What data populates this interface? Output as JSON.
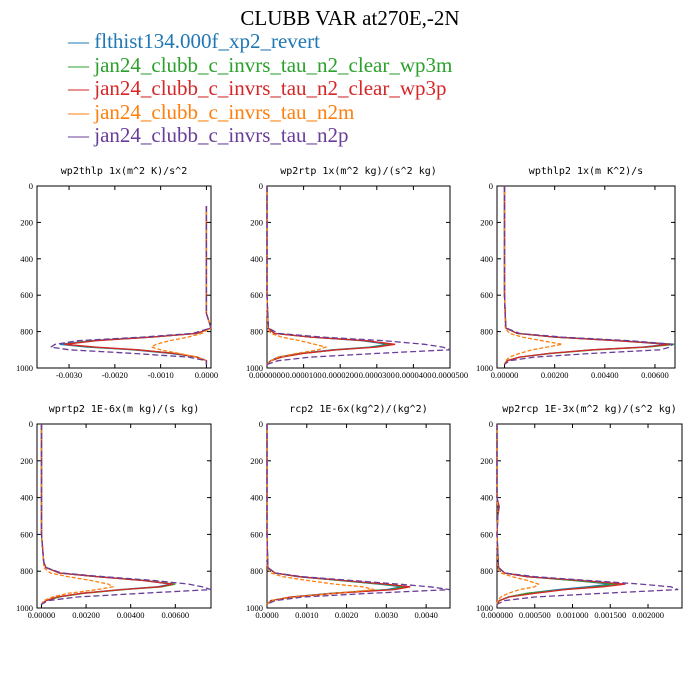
{
  "title": "CLUBB VAR at270E,-2N",
  "legend": [
    {
      "label": "flthist134.000f_xp2_revert",
      "color": "#1f77b4",
      "dash": "none"
    },
    {
      "label": "jan24_clubb_c_invrs_tau_n2_clear_wp3m",
      "color": "#2ca02c",
      "dash": "none"
    },
    {
      "label": "jan24_clubb_c_invrs_tau_n2_clear_wp3p",
      "color": "#d62728",
      "dash": "none"
    },
    {
      "label": "jan24_clubb_c_invrs_tau_n2m",
      "color": "#ff7f0e",
      "dash": "4,2"
    },
    {
      "label": "jan24_clubb_c_invrs_tau_n2p",
      "color": "#6a3d9a",
      "dash": "6,3"
    }
  ],
  "chart_data": [
    {
      "type": "line",
      "title": "wp2thlp  1x(m^2 K)/s^2",
      "xlim": [
        -0.0037,
        0.0001
      ],
      "ylim": [
        0,
        1000
      ],
      "xticks": [
        "-0.0030",
        "-0.0020",
        "-0.0010",
        "0.0000"
      ],
      "xtick_values": [
        -0.003,
        -0.002,
        -0.001,
        0.0
      ],
      "yticks": [
        "0",
        "200",
        "400",
        "600",
        "800",
        "1000"
      ],
      "ytick_values": [
        0,
        200,
        400,
        600,
        800,
        1000
      ],
      "levels": [
        110,
        150,
        200,
        300,
        400,
        500,
        600,
        700,
        780,
        810,
        830,
        850,
        870,
        885,
        900,
        920,
        940,
        960,
        980
      ],
      "series": [
        {
          "values": [
            0,
            0,
            0,
            0,
            0,
            0,
            0,
            0,
            0.0001,
            -0.0002,
            -0.0012,
            -0.0025,
            -0.0032,
            -0.0026,
            -0.0016,
            -0.0008,
            -0.0002,
            0,
            0
          ]
        },
        {
          "values": [
            0,
            0,
            0,
            0,
            0,
            0,
            0,
            0,
            0.0001,
            -0.0002,
            -0.0012,
            -0.0025,
            -0.0031,
            -0.0025,
            -0.0015,
            -0.0007,
            -0.0002,
            0,
            0
          ]
        },
        {
          "values": [
            0,
            0,
            0,
            0,
            0,
            0,
            0,
            0,
            0.0001,
            -0.0002,
            -0.0012,
            -0.0024,
            -0.0031,
            -0.0024,
            -0.0015,
            -0.0007,
            -0.0002,
            0,
            0
          ]
        },
        {
          "values": [
            0,
            0,
            0,
            0,
            0,
            0,
            0,
            0,
            0.0001,
            -0.0001,
            -0.0004,
            -0.0008,
            -0.0011,
            -0.0012,
            -0.001,
            -0.0006,
            -0.0002,
            0,
            0
          ]
        },
        {
          "values": [
            0,
            0,
            0,
            0,
            0,
            0,
            0,
            0,
            0.0001,
            -0.0003,
            -0.0014,
            -0.0028,
            -0.0033,
            -0.0034,
            -0.003,
            -0.0016,
            -0.0004,
            0,
            0
          ]
        }
      ]
    },
    {
      "type": "line",
      "title": "wp2rtp  1x(m^2 kg)/(s^2 kg)",
      "xlim": [
        0,
        5e-05
      ],
      "ylim": [
        0,
        1000
      ],
      "xticks": [
        "0.0000000",
        "0.0000100",
        "0.0000200",
        "0.0000300",
        "0.0000400",
        "0.0000500"
      ],
      "xtick_values": [
        0,
        1e-05,
        2e-05,
        3e-05,
        4e-05,
        5e-05
      ],
      "yticks": [
        "0",
        "200",
        "400",
        "600",
        "800",
        "1000"
      ],
      "ytick_values": [
        0,
        200,
        400,
        600,
        800,
        1000
      ],
      "levels": [
        0,
        200,
        400,
        600,
        780,
        810,
        830,
        850,
        870,
        885,
        900,
        920,
        940,
        960,
        980
      ],
      "series": [
        {
          "values": [
            0,
            0,
            0,
            0,
            3e-07,
            2e-06,
            1.2e-05,
            2.6e-05,
            3.3e-05,
            2.8e-05,
            1.8e-05,
            9e-06,
            3e-06,
            1e-06,
            0
          ]
        },
        {
          "values": [
            0,
            0,
            0,
            0,
            3e-07,
            2e-06,
            1.2e-05,
            2.7e-05,
            3.4e-05,
            2.9e-05,
            1.9e-05,
            1e-05,
            4e-06,
            1e-06,
            0
          ]
        },
        {
          "values": [
            0,
            0,
            0,
            0,
            3e-07,
            2e-06,
            1.2e-05,
            2.7e-05,
            3.5e-05,
            3e-05,
            1.9e-05,
            1e-05,
            4e-06,
            1e-06,
            0
          ]
        },
        {
          "values": [
            0,
            0,
            0,
            0,
            2e-07,
            1e-06,
            4e-06,
            9e-06,
            1.3e-05,
            1.6e-05,
            1.4e-05,
            8e-06,
            3e-06,
            1e-06,
            0
          ]
        },
        {
          "values": [
            0,
            0,
            0,
            0,
            4e-07,
            3e-06,
            1.5e-05,
            3.2e-05,
            4.3e-05,
            4.8e-05,
            5e-05,
            3e-05,
            1.2e-05,
            3e-06,
            0
          ]
        }
      ]
    },
    {
      "type": "line",
      "title": "wpthlp2  1x(m K^2)/s",
      "xlim": [
        -0.0003,
        0.0068
      ],
      "ylim": [
        0,
        1000
      ],
      "xticks": [
        "0.00000",
        "0.00200",
        "0.00400",
        "0.00600"
      ],
      "xtick_values": [
        0,
        0.002,
        0.004,
        0.006
      ],
      "yticks": [
        "0",
        "200",
        "400",
        "600",
        "800",
        "1000"
      ],
      "ytick_values": [
        0,
        200,
        400,
        600,
        800,
        1000
      ],
      "levels": [
        0,
        200,
        400,
        600,
        780,
        810,
        830,
        850,
        870,
        885,
        900,
        920,
        940,
        960,
        980
      ],
      "series": [
        {
          "values": [
            0,
            0,
            0,
            0,
            5e-05,
            0.0005,
            0.002,
            0.0045,
            0.0065,
            0.0055,
            0.0035,
            0.0018,
            0.0006,
            0.0001,
            0
          ]
        },
        {
          "values": [
            0,
            0,
            0,
            0,
            5e-05,
            0.0005,
            0.002,
            0.0046,
            0.0068,
            0.0057,
            0.0036,
            0.0019,
            0.0006,
            0.0001,
            0
          ]
        },
        {
          "values": [
            0,
            0,
            0,
            0,
            5e-05,
            0.0005,
            0.002,
            0.0045,
            0.0066,
            0.0056,
            0.0035,
            0.0018,
            0.0006,
            0.0001,
            0
          ]
        },
        {
          "values": [
            0,
            0,
            0,
            0,
            3e-05,
            0.0002,
            0.0007,
            0.0015,
            0.0023,
            0.0017,
            0.0011,
            0.0006,
            0.0002,
            5e-05,
            0
          ]
        },
        {
          "values": [
            0,
            0,
            0,
            0,
            5e-05,
            0.0006,
            0.0023,
            0.005,
            0.0067,
            0.0066,
            0.0062,
            0.0035,
            0.0012,
            0.0002,
            0
          ]
        }
      ]
    },
    {
      "type": "line",
      "title": "wprtp2  1E-6x(m kg)/(s kg)",
      "xlim": [
        -0.0002,
        0.0076
      ],
      "ylim": [
        0,
        1000
      ],
      "xticks": [
        "0.00000",
        "0.00200",
        "0.00400",
        "0.00600"
      ],
      "xtick_values": [
        0,
        0.002,
        0.004,
        0.006
      ],
      "yticks": [
        "0",
        "200",
        "400",
        "600",
        "800",
        "1000"
      ],
      "ytick_values": [
        0,
        200,
        400,
        600,
        800,
        1000
      ],
      "levels": [
        0,
        200,
        400,
        600,
        750,
        780,
        810,
        830,
        850,
        870,
        885,
        900,
        920,
        940,
        960,
        980
      ],
      "series": [
        {
          "values": [
            0,
            0,
            0,
            0,
            0.0001,
            0.0002,
            0.0008,
            0.0025,
            0.0045,
            0.0058,
            0.0052,
            0.0035,
            0.0018,
            0.0007,
            0.0002,
            0
          ]
        },
        {
          "values": [
            0,
            0,
            0,
            0,
            0.0001,
            0.0002,
            0.0008,
            0.0025,
            0.0046,
            0.006,
            0.0054,
            0.0037,
            0.0019,
            0.0008,
            0.0002,
            0
          ]
        },
        {
          "values": [
            0,
            0,
            0,
            0,
            0.0001,
            0.0002,
            0.0008,
            0.0025,
            0.0045,
            0.0059,
            0.0053,
            0.0036,
            0.0018,
            0.0007,
            0.0002,
            0
          ]
        },
        {
          "values": [
            0,
            0,
            0,
            0,
            0.0001,
            0.0001,
            0.0004,
            0.0012,
            0.0022,
            0.003,
            0.0032,
            0.0025,
            0.0012,
            0.0005,
            0.0001,
            0
          ]
        },
        {
          "values": [
            0,
            0,
            0,
            0,
            0.0001,
            0.0002,
            0.0009,
            0.0028,
            0.005,
            0.0066,
            0.0072,
            0.0076,
            0.0045,
            0.0016,
            0.0003,
            0
          ]
        }
      ]
    },
    {
      "type": "line",
      "title": "rcp2  1E-6x(kg^2)/(kg^2)",
      "xlim": [
        0,
        0.0046
      ],
      "ylim": [
        0,
        1000
      ],
      "xticks": [
        "0.0000",
        "0.0010",
        "0.0020",
        "0.0030",
        "0.0040"
      ],
      "xtick_values": [
        0,
        0.001,
        0.002,
        0.003,
        0.004
      ],
      "yticks": [
        "0",
        "200",
        "400",
        "600",
        "800",
        "1000"
      ],
      "ytick_values": [
        0,
        200,
        400,
        600,
        800,
        1000
      ],
      "levels": [
        0,
        200,
        400,
        600,
        780,
        810,
        830,
        850,
        870,
        885,
        900,
        920,
        940,
        960,
        980
      ],
      "series": [
        {
          "values": [
            0,
            0,
            0,
            0,
            2e-05,
            0.0002,
            0.0008,
            0.0018,
            0.0028,
            0.0034,
            0.003,
            0.0016,
            0.0006,
            0.0001,
            0
          ]
        },
        {
          "values": [
            0,
            0,
            0,
            0,
            2e-05,
            0.0002,
            0.0008,
            0.0018,
            0.0029,
            0.0035,
            0.0031,
            0.0017,
            0.0006,
            0.0001,
            0
          ]
        },
        {
          "values": [
            0,
            0,
            0,
            0,
            2e-05,
            0.0002,
            0.0008,
            0.0019,
            0.003,
            0.0036,
            0.0032,
            0.0017,
            0.0006,
            0.0001,
            0
          ]
        },
        {
          "values": [
            0,
            0,
            0,
            0,
            1e-05,
            0.0001,
            0.0004,
            0.001,
            0.0017,
            0.0024,
            0.0027,
            0.0017,
            0.0007,
            0.0001,
            0
          ]
        },
        {
          "values": [
            0,
            0,
            0,
            0,
            2e-05,
            0.0002,
            0.0009,
            0.0021,
            0.0033,
            0.0041,
            0.0046,
            0.0026,
            0.0009,
            0.0002,
            0
          ]
        }
      ]
    },
    {
      "type": "line",
      "title": "wp2rcp  1E-3x(m^2 kg)/(s^2 kg)",
      "xlim": [
        0,
        0.00245
      ],
      "ylim": [
        0,
        1000
      ],
      "xticks": [
        "0.000000",
        "0.000500",
        "0.001000",
        "0.001500",
        "0.002000"
      ],
      "xtick_values": [
        0,
        0.0005,
        0.001,
        0.0015,
        0.002
      ],
      "yticks": [
        "0",
        "200",
        "400",
        "600",
        "800",
        "1000"
      ],
      "ytick_values": [
        0,
        200,
        400,
        600,
        800,
        1000
      ],
      "levels": [
        0,
        200,
        400,
        450,
        500,
        600,
        780,
        810,
        830,
        850,
        870,
        885,
        900,
        920,
        940,
        960,
        980
      ],
      "series": [
        {
          "values": [
            0,
            0,
            0,
            2e-05,
            1e-05,
            0,
            2e-05,
            0.0001,
            0.0004,
            0.001,
            0.0015,
            0.0012,
            0.0008,
            0.0004,
            0.00015,
            3e-05,
            0
          ]
        },
        {
          "values": [
            0,
            0,
            0,
            2e-05,
            1e-05,
            0,
            2e-05,
            0.0001,
            0.0004,
            0.001,
            0.0016,
            0.0013,
            0.0009,
            0.0004,
            0.00015,
            3e-05,
            0
          ]
        },
        {
          "values": [
            0,
            0,
            0,
            3e-05,
            1e-05,
            0,
            2e-05,
            0.0001,
            0.0004,
            0.0011,
            0.0017,
            0.0014,
            0.0009,
            0.0005,
            0.00016,
            3e-05,
            0
          ]
        },
        {
          "values": [
            0,
            0,
            0,
            1e-05,
            1e-05,
            0,
            1e-05,
            5e-05,
            0.0002,
            0.0004,
            0.00055,
            0.0005,
            0.0003,
            0.00015,
            5e-05,
            1e-05,
            0
          ]
        },
        {
          "values": [
            0,
            0,
            0,
            2e-05,
            1e-05,
            0,
            2e-05,
            0.0001,
            0.0005,
            0.0012,
            0.0019,
            0.0023,
            0.0024,
            0.0014,
            0.0005,
            0.0001,
            0
          ]
        }
      ]
    }
  ]
}
